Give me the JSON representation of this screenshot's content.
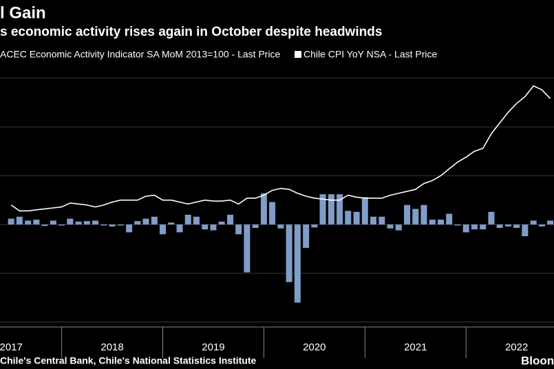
{
  "chart_data": {
    "type": "bar-line",
    "title": "l Gain",
    "subtitle": "s economic activity rises again in October despite headwinds",
    "source": "Chile's Central Bank, Chile's National Statistics Institute",
    "brand": "Bloon",
    "x": [
      2017.5,
      2017.583,
      2017.667,
      2017.75,
      2017.833,
      2017.917,
      2018,
      2018.083,
      2018.167,
      2018.25,
      2018.333,
      2018.417,
      2018.5,
      2018.583,
      2018.667,
      2018.75,
      2018.833,
      2018.917,
      2019,
      2019.083,
      2019.167,
      2019.25,
      2019.333,
      2019.417,
      2019.5,
      2019.583,
      2019.667,
      2019.75,
      2019.833,
      2019.917,
      2020,
      2020.083,
      2020.167,
      2020.25,
      2020.333,
      2020.417,
      2020.5,
      2020.583,
      2020.667,
      2020.75,
      2020.833,
      2020.917,
      2021,
      2021.083,
      2021.167,
      2021.25,
      2021.333,
      2021.417,
      2021.5,
      2021.583,
      2021.667,
      2021.75,
      2021.833,
      2021.917,
      2022,
      2022.083,
      2022.167,
      2022.25,
      2022.333,
      2022.417,
      2022.5,
      2022.583,
      2022.667,
      2022.75,
      2022.833
    ],
    "series": [
      {
        "name": "ACEC Economic Activity Indicator SA MoM 2013=100 - Last Price",
        "kind": "bar",
        "color": "#809dc8",
        "values": [
          0.6,
          0.8,
          0.4,
          0.5,
          -0.15,
          0.4,
          -0.1,
          0.6,
          0.3,
          0.35,
          0.4,
          -0.1,
          -0.2,
          -0.1,
          -0.8,
          0.35,
          0.6,
          0.8,
          -1.0,
          0.2,
          -0.8,
          1.0,
          0.8,
          -0.5,
          -0.6,
          0.3,
          1.0,
          -1.0,
          -4.9,
          -0.35,
          3.2,
          2.3,
          -0.4,
          -5.9,
          -8.0,
          -2.4,
          -0.3,
          3.1,
          3.1,
          3.1,
          1.4,
          1.3,
          2.8,
          0.8,
          0.8,
          -0.4,
          -0.6,
          2.0,
          1.6,
          2.0,
          0.5,
          0.5,
          1.1,
          -0.1,
          -0.8,
          -0.5,
          -0.5,
          1.3,
          -0.35,
          -0.2,
          -0.35,
          -1.2,
          0.4,
          -0.2,
          0.4
        ]
      },
      {
        "name": "Chile CPI YoY NSA - Last Price",
        "kind": "line",
        "color": "#ffffff",
        "values": [
          2.0,
          1.4,
          1.4,
          1.5,
          1.6,
          1.7,
          1.8,
          2.2,
          2.1,
          2.0,
          1.8,
          2.0,
          2.3,
          2.5,
          2.5,
          2.5,
          2.9,
          3.0,
          2.5,
          2.5,
          2.3,
          2.1,
          2.3,
          2.5,
          2.4,
          2.4,
          2.5,
          2.1,
          2.7,
          2.7,
          3.0,
          3.5,
          3.7,
          3.6,
          3.2,
          2.9,
          2.7,
          2.6,
          2.5,
          2.5,
          3.0,
          2.8,
          2.7,
          2.7,
          2.7,
          3.0,
          3.2,
          3.4,
          3.6,
          4.2,
          4.5,
          5.0,
          5.7,
          6.4,
          6.9,
          7.5,
          7.8,
          9.3,
          10.4,
          11.5,
          12.4,
          13.1,
          14.2,
          13.8,
          12.9
        ]
      }
    ],
    "xlim": [
      2017.39,
      2022.87
    ],
    "xticks": [
      {
        "value": 2017.5,
        "label": "2017"
      },
      {
        "value": 2018.5,
        "label": "2018"
      },
      {
        "value": 2019.5,
        "label": "2019"
      },
      {
        "value": 2020.5,
        "label": "2020"
      },
      {
        "value": 2021.5,
        "label": "2021"
      },
      {
        "value": 2022.5,
        "label": "2022"
      }
    ],
    "x_dividers": [
      2018,
      2019,
      2020,
      2021,
      2022
    ],
    "ylim": [
      -10.5,
      16.3
    ],
    "yticks": [
      -10,
      -5,
      0,
      5,
      10,
      15
    ],
    "grid": true
  }
}
